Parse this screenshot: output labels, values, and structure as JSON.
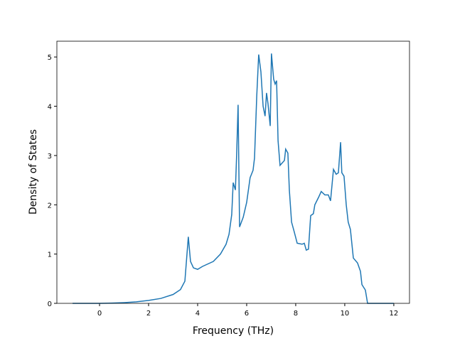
{
  "chart_data": {
    "type": "line",
    "x_label": "Frequency (THz)",
    "y_label": "Density of States",
    "x": [
      -1.1,
      0,
      0.5,
      1,
      1.5,
      2,
      2.5,
      3,
      3.3,
      3.48,
      3.62,
      3.71,
      3.83,
      4.0,
      4.2,
      4.64,
      4.93,
      5.16,
      5.28,
      5.39,
      5.45,
      5.54,
      5.59,
      5.65,
      5.71,
      5.86,
      6.0,
      6.14,
      6.26,
      6.32,
      6.41,
      6.49,
      6.58,
      6.67,
      6.75,
      6.81,
      6.87,
      6.96,
      7.01,
      7.1,
      7.16,
      7.22,
      7.28,
      7.36,
      7.54,
      7.59,
      7.68,
      7.74,
      7.83,
      7.94,
      8.06,
      8.26,
      8.35,
      8.43,
      8.52,
      8.61,
      8.72,
      8.78,
      8.93,
      9.04,
      9.19,
      9.33,
      9.42,
      9.54,
      9.65,
      9.74,
      9.83,
      9.88,
      9.97,
      10.06,
      10.14,
      10.23,
      10.35,
      10.52,
      10.64,
      10.7,
      10.84,
      10.93,
      12
    ],
    "series": [
      {
        "name": "DOS",
        "color": "#1f77b4",
        "values": [
          0,
          0,
          0.005,
          0.015,
          0.03,
          0.06,
          0.1,
          0.18,
          0.28,
          0.45,
          1.35,
          0.85,
          0.72,
          0.69,
          0.75,
          0.85,
          1.0,
          1.2,
          1.4,
          1.8,
          2.45,
          2.3,
          3.0,
          4.03,
          1.55,
          1.75,
          2.05,
          2.55,
          2.7,
          2.95,
          4.2,
          5.05,
          4.7,
          4.0,
          3.8,
          4.27,
          4.05,
          3.6,
          5.07,
          4.55,
          4.45,
          4.52,
          3.3,
          2.8,
          2.9,
          3.13,
          3.05,
          2.3,
          1.65,
          1.45,
          1.22,
          1.2,
          1.22,
          1.08,
          1.1,
          1.78,
          1.82,
          2.0,
          2.15,
          2.27,
          2.2,
          2.2,
          2.08,
          2.72,
          2.62,
          2.65,
          3.27,
          2.65,
          2.58,
          2.0,
          1.65,
          1.5,
          0.92,
          0.82,
          0.65,
          0.38,
          0.27,
          0,
          0
        ]
      }
    ],
    "xlim": [
      -1.74,
      12.64
    ],
    "ylim": [
      0,
      5.32
    ],
    "xticks": [
      0,
      2,
      4,
      6,
      8,
      10,
      12
    ],
    "yticks": [
      0,
      1,
      2,
      3,
      4,
      5
    ]
  }
}
